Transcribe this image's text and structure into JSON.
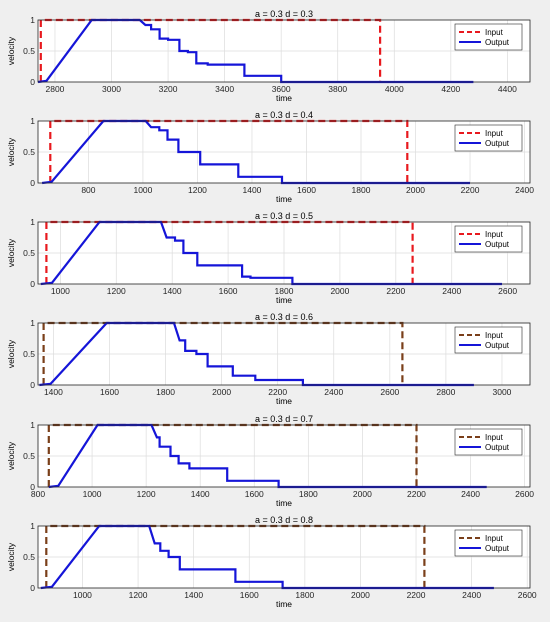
{
  "chart_data": [
    {
      "type": "line",
      "title": "a = 0.3  d = 0.3",
      "xlabel": "time",
      "ylabel": "velocity",
      "xlim": [
        2740,
        4480
      ],
      "ylim": [
        0,
        1
      ],
      "xticks": [
        2800,
        3000,
        3200,
        3400,
        3600,
        3800,
        4000,
        4200,
        4400
      ],
      "yticks": [
        0,
        0.5,
        1
      ],
      "grid": true,
      "legend": "top-right",
      "colors": {
        "input": "#e8191e",
        "output": "#1515d8"
      },
      "series": [
        {
          "name": "Input",
          "style": "dashed",
          "x": [
            2750,
            2750,
            3950,
            3950
          ],
          "y": [
            0,
            1,
            1,
            0
          ]
        },
        {
          "name": "Output",
          "style": "solid",
          "x": [
            2740,
            2770,
            2930,
            3100,
            3120,
            3140,
            3140,
            3170,
            3170,
            3200,
            3200,
            3240,
            3240,
            3270,
            3270,
            3300,
            3300,
            3340,
            3340,
            3470,
            3470,
            3600,
            3600,
            4280
          ],
          "y": [
            0,
            0.02,
            1,
            1,
            0.92,
            0.92,
            0.85,
            0.85,
            0.7,
            0.7,
            0.68,
            0.68,
            0.5,
            0.5,
            0.48,
            0.48,
            0.3,
            0.3,
            0.28,
            0.28,
            0.1,
            0.1,
            0,
            0
          ]
        }
      ]
    },
    {
      "type": "line",
      "title": "a = 0.3  d = 0.4",
      "xlabel": "time",
      "ylabel": "velocity",
      "xlim": [
        615,
        2420
      ],
      "ylim": [
        0,
        1
      ],
      "xticks": [
        800,
        1000,
        1200,
        1400,
        1600,
        1800,
        2000,
        2200,
        2400
      ],
      "yticks": [
        0,
        0.5,
        1
      ],
      "grid": true,
      "legend": "top-right",
      "colors": {
        "input": "#e8191e",
        "output": "#1515d8"
      },
      "series": [
        {
          "name": "Input",
          "style": "dashed",
          "x": [
            660,
            660,
            1970,
            1970
          ],
          "y": [
            0,
            1,
            1,
            0
          ]
        },
        {
          "name": "Output",
          "style": "solid",
          "x": [
            630,
            665,
            855,
            1010,
            1030,
            1060,
            1060,
            1090,
            1090,
            1130,
            1130,
            1160,
            1160,
            1210,
            1210,
            1240,
            1240,
            1350,
            1350,
            1510,
            1510,
            2200
          ],
          "y": [
            0,
            0.02,
            1,
            1,
            0.9,
            0.9,
            0.85,
            0.85,
            0.7,
            0.7,
            0.5,
            0.5,
            0.5,
            0.5,
            0.3,
            0.3,
            0.3,
            0.3,
            0.1,
            0.1,
            0,
            0
          ]
        }
      ]
    },
    {
      "type": "line",
      "title": "a = 0.3  d = 0.5",
      "xlabel": "time",
      "ylabel": "velocity",
      "xlim": [
        920,
        2680
      ],
      "ylim": [
        0,
        1
      ],
      "xticks": [
        1000,
        1200,
        1400,
        1600,
        1800,
        2000,
        2200,
        2400,
        2600
      ],
      "yticks": [
        0,
        0.5,
        1
      ],
      "grid": true,
      "legend": "top-right",
      "colors": {
        "input": "#e8191e",
        "output": "#1515d8"
      },
      "series": [
        {
          "name": "Input",
          "style": "dashed",
          "x": [
            950,
            950,
            2260,
            2260
          ],
          "y": [
            0,
            1,
            1,
            0
          ]
        },
        {
          "name": "Output",
          "style": "solid",
          "x": [
            930,
            970,
            1140,
            1360,
            1380,
            1410,
            1410,
            1440,
            1440,
            1490,
            1490,
            1520,
            1520,
            1650,
            1650,
            1680,
            1680,
            1830,
            1830,
            2580
          ],
          "y": [
            0,
            0.02,
            1,
            1,
            0.75,
            0.75,
            0.7,
            0.7,
            0.5,
            0.5,
            0.3,
            0.3,
            0.3,
            0.3,
            0.12,
            0.12,
            0.1,
            0.1,
            0,
            0
          ]
        }
      ]
    },
    {
      "type": "line",
      "title": "a = 0.3  d = 0.6",
      "xlabel": "time",
      "ylabel": "velocity",
      "xlim": [
        1345,
        3100
      ],
      "ylim": [
        0,
        1
      ],
      "xticks": [
        1400,
        1600,
        1800,
        2000,
        2200,
        2400,
        2600,
        2800,
        3000
      ],
      "yticks": [
        0,
        0.5,
        1
      ],
      "grid": true,
      "legend": "top-right",
      "colors": {
        "input": "#7a3f1a",
        "output": "#1515d8"
      },
      "series": [
        {
          "name": "Input",
          "style": "dashed",
          "x": [
            1365,
            1365,
            2645,
            2645
          ],
          "y": [
            0,
            1,
            1,
            0
          ]
        },
        {
          "name": "Output",
          "style": "solid",
          "x": [
            1350,
            1390,
            1590,
            1830,
            1850,
            1870,
            1870,
            1910,
            1910,
            1950,
            1950,
            2040,
            2040,
            2120,
            2120,
            2290,
            2290,
            2900
          ],
          "y": [
            0,
            0.02,
            1,
            1,
            0.72,
            0.72,
            0.55,
            0.55,
            0.5,
            0.5,
            0.3,
            0.3,
            0.15,
            0.15,
            0.08,
            0.08,
            0,
            0
          ]
        }
      ]
    },
    {
      "type": "line",
      "title": "a = 0.3  d = 0.7",
      "xlabel": "time",
      "ylabel": "velocity",
      "xlim": [
        800,
        2620
      ],
      "ylim": [
        0,
        1
      ],
      "xticks": [
        800,
        1000,
        1200,
        1400,
        1600,
        1800,
        2000,
        2200,
        2400,
        2600
      ],
      "yticks": [
        0,
        0.5,
        1
      ],
      "grid": true,
      "legend": "top-right",
      "colors": {
        "input": "#7a3f1a",
        "output": "#1515d8"
      },
      "series": [
        {
          "name": "Input",
          "style": "dashed",
          "x": [
            840,
            840,
            2200,
            2200
          ],
          "y": [
            0,
            1,
            1,
            0
          ]
        },
        {
          "name": "Output",
          "style": "solid",
          "x": [
            840,
            875,
            1020,
            1220,
            1240,
            1250,
            1250,
            1290,
            1290,
            1320,
            1320,
            1360,
            1360,
            1500,
            1500,
            1690,
            1690,
            2460
          ],
          "y": [
            0,
            0.02,
            1,
            1,
            0.8,
            0.8,
            0.65,
            0.65,
            0.5,
            0.5,
            0.38,
            0.38,
            0.3,
            0.3,
            0.1,
            0.1,
            0,
            0
          ]
        }
      ]
    },
    {
      "type": "line",
      "title": "a = 0.3  d = 0.8",
      "xlabel": "time",
      "ylabel": "velocity",
      "xlim": [
        840,
        2610
      ],
      "ylim": [
        0,
        1
      ],
      "xticks": [
        1000,
        1200,
        1400,
        1600,
        1800,
        2000,
        2200,
        2400,
        2600
      ],
      "yticks": [
        0,
        0.5,
        1
      ],
      "grid": true,
      "legend": "top-right",
      "colors": {
        "input": "#7a3f1a",
        "output": "#1515d8"
      },
      "series": [
        {
          "name": "Input",
          "style": "dashed",
          "x": [
            870,
            870,
            2230,
            2230
          ],
          "y": [
            0,
            1,
            1,
            0
          ]
        },
        {
          "name": "Output",
          "style": "solid",
          "x": [
            850,
            890,
            1060,
            1240,
            1260,
            1280,
            1280,
            1310,
            1310,
            1350,
            1350,
            1370,
            1370,
            1550,
            1550,
            1720,
            1720,
            2480
          ],
          "y": [
            0,
            0.02,
            1,
            1,
            0.72,
            0.72,
            0.6,
            0.6,
            0.5,
            0.5,
            0.3,
            0.3,
            0.3,
            0.3,
            0.1,
            0.1,
            0,
            0
          ]
        }
      ]
    }
  ]
}
